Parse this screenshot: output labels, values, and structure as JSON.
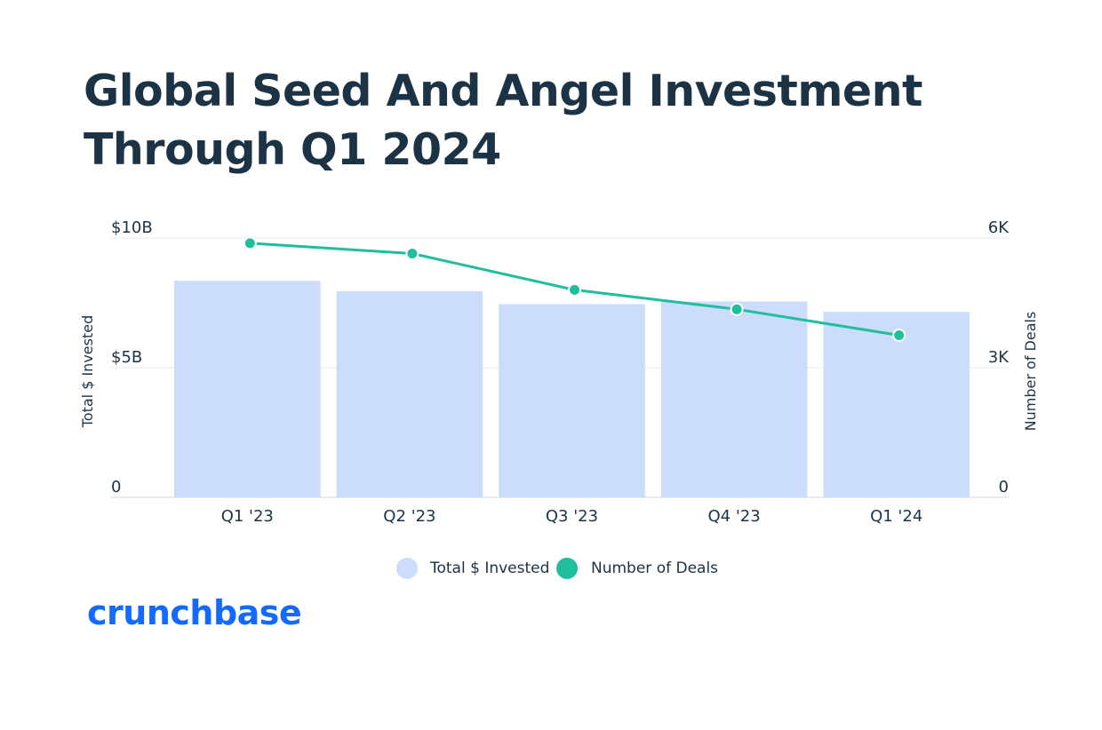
{
  "chart_data": {
    "type": "bar",
    "title_lines": [
      "Global Seed And Angel Investment",
      "Through Q1 2024"
    ],
    "categories": [
      "Q1 '23",
      "Q2 '23",
      "Q3 '23",
      "Q4 '23",
      "Q1 '24"
    ],
    "series": [
      {
        "name": "Total $ Invested",
        "type": "bar",
        "axis": "left",
        "color": "#ccdcfb",
        "values": [
          8.35,
          7.95,
          7.45,
          7.55,
          7.15
        ]
      },
      {
        "name": "Number of Deals",
        "type": "line",
        "axis": "right",
        "color": "#1fbf9d",
        "values": [
          5880,
          5640,
          4800,
          4350,
          3750
        ]
      }
    ],
    "y_left": {
      "label": "Total $ Invested",
      "range": [
        0,
        10
      ],
      "ticks": [
        0,
        5,
        10
      ],
      "tick_labels": [
        "0",
        "$5B",
        "$10B"
      ]
    },
    "y_right": {
      "label": "Number of Deals",
      "range": [
        0,
        6000
      ],
      "ticks": [
        0,
        3000,
        6000
      ],
      "tick_labels": [
        "0",
        "3K",
        "6K"
      ]
    },
    "grid": true,
    "legend_position": "bottom"
  },
  "brand": {
    "logo_text": "crunchbase"
  }
}
